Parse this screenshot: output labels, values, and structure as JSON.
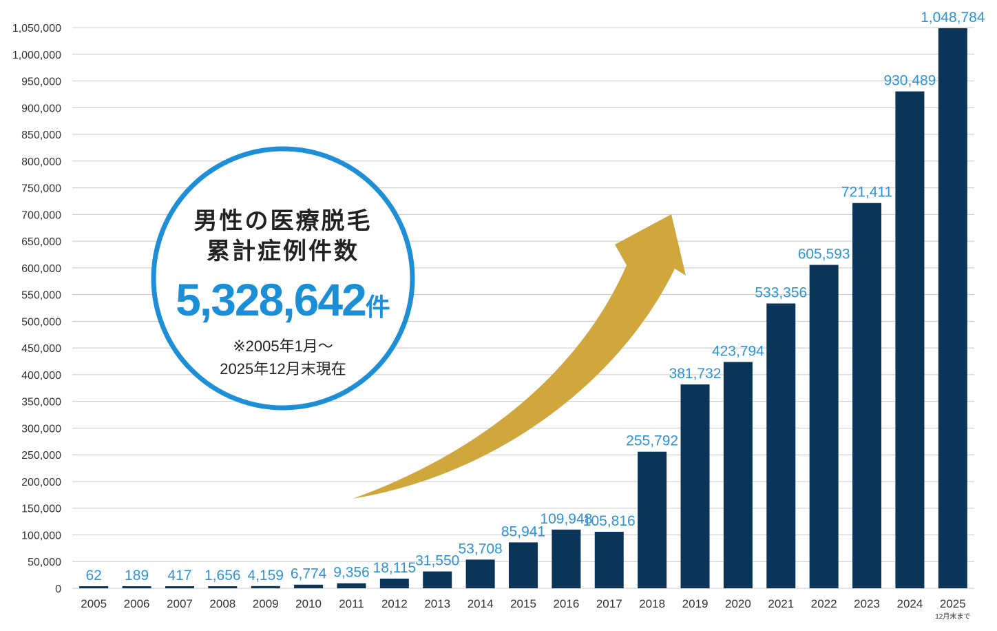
{
  "chart_data": {
    "type": "bar",
    "categories": [
      "2005",
      "2006",
      "2007",
      "2008",
      "2009",
      "2010",
      "2011",
      "2012",
      "2013",
      "2014",
      "2015",
      "2016",
      "2017",
      "2018",
      "2019",
      "2020",
      "2021",
      "2022",
      "2023",
      "2024",
      "2025"
    ],
    "values": [
      62,
      189,
      417,
      1656,
      4159,
      6774,
      9356,
      18115,
      31550,
      53708,
      85941,
      109948,
      105816,
      255792,
      381732,
      423794,
      533356,
      605593,
      721411,
      930489,
      1048784
    ],
    "value_labels": [
      "62",
      "189",
      "417",
      "1,656",
      "4,159",
      "6,774",
      "9,356",
      "18,115",
      "31,550",
      "53,708",
      "85,941",
      "109,948",
      "105,816",
      "255,792",
      "381,732",
      "423,794",
      "533,356",
      "605,593",
      "721,411",
      "930,489",
      "1,048,784"
    ],
    "y_ticks": [
      0,
      50000,
      100000,
      150000,
      200000,
      250000,
      300000,
      350000,
      400000,
      450000,
      500000,
      550000,
      600000,
      650000,
      700000,
      750000,
      800000,
      850000,
      900000,
      950000,
      1000000,
      1050000
    ],
    "y_tick_labels": [
      "0",
      "50,000",
      "100,000",
      "150,000",
      "200,000",
      "250,000",
      "300,000",
      "350,000",
      "400,000",
      "450,000",
      "500,000",
      "550,000",
      "600,000",
      "650,000",
      "700,000",
      "750,000",
      "800,000",
      "850,000",
      "900,000",
      "950,000",
      "1,000,000",
      "1,050,000"
    ],
    "ylim": [
      0,
      1050000
    ],
    "grid": true,
    "last_category_note": "12月末まで",
    "callout": {
      "title_line1": "男性の医療脱毛",
      "title_line2": "累計症例件数",
      "total": "5,328,642",
      "unit": "件",
      "note_line1": "※2005年1月～",
      "note_line2": "2025年12月末現在"
    },
    "colors": {
      "bar": "#0b3558",
      "value_label": "#2d93d6",
      "grid": "#c8c8c8",
      "circle_border": "#1e8fd6",
      "arrow": "#cfa73c"
    }
  }
}
